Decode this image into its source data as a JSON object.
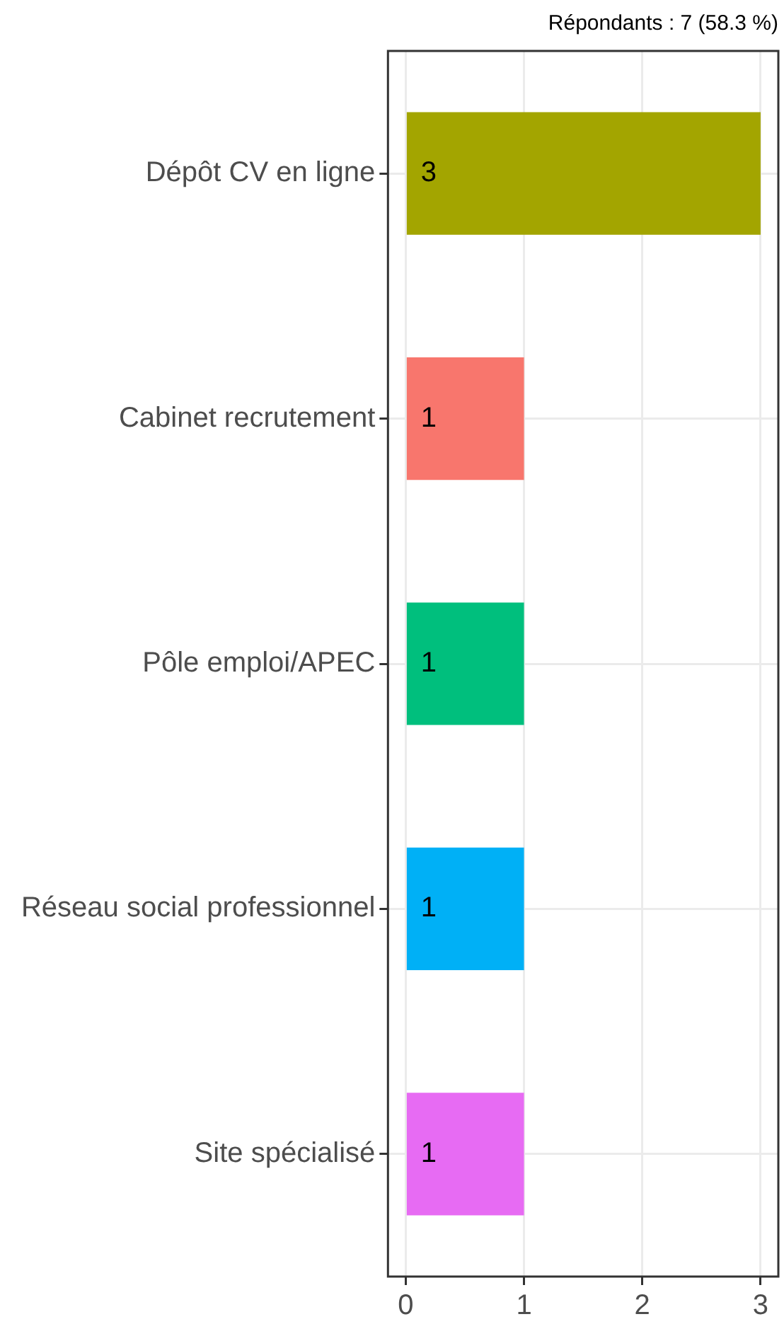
{
  "chart_data": {
    "type": "bar",
    "orientation": "horizontal",
    "title": "Répondants : 7 (58.3 %)",
    "categories": [
      "Dépôt CV en ligne",
      "Cabinet recrutement",
      "Pôle emploi/APEC",
      "Réseau social professionnel",
      "Site spécialisé"
    ],
    "values": [
      3,
      1,
      1,
      1,
      1
    ],
    "colors": [
      "#a3a500",
      "#f8766d",
      "#00bf7d",
      "#00b0f6",
      "#e76bf3"
    ],
    "xlim": [
      -0.15,
      3.15
    ],
    "xticks": [
      0,
      1,
      2,
      3
    ],
    "grid": true,
    "data_labels": true
  }
}
